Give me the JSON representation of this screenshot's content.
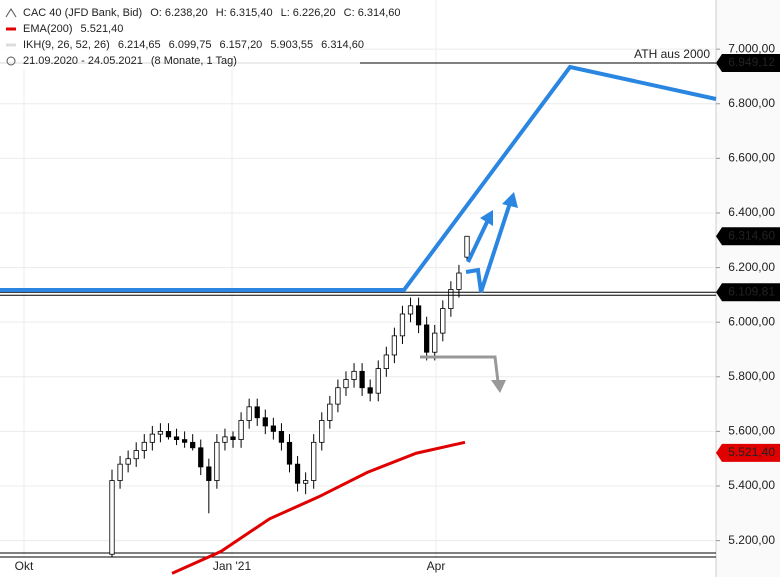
{
  "chart_data": {
    "type": "candlestick",
    "header": [
      [
        "CAC 40 (JFD Bank, Bid)",
        "O: 6.238,20",
        "H: 6.315,40",
        "L: 6.226,20",
        "C: 6.314,60"
      ],
      [
        "EMA(200)",
        "5.521,40"
      ],
      [
        "IKH(9, 26, 52, 26)",
        "6.214,65",
        "6.099,75",
        "6.157,20",
        "5.903,55",
        "6.314,60"
      ],
      [
        "21.09.2020 - 24.05.2021",
        "(8 Monate, 1 Tag)"
      ]
    ],
    "annotation": "ATH aus 2000",
    "xticks": [
      "Okt",
      "Jan '21",
      "Apr"
    ],
    "ylim": [
      5140,
      7180
    ],
    "yticks": [
      {
        "value": 5200,
        "label": "5.200,00"
      },
      {
        "value": 5400,
        "label": "5.400,00"
      },
      {
        "value": 5600,
        "label": "5.600,00"
      },
      {
        "value": 5800,
        "label": "5.800,00"
      },
      {
        "value": 6000,
        "label": "6.000,00"
      },
      {
        "value": 6200,
        "label": "6.200,00"
      },
      {
        "value": 6400,
        "label": "6.400,00"
      },
      {
        "value": 6600,
        "label": "6.600,00"
      },
      {
        "value": 6800,
        "label": "6.800,00"
      },
      {
        "value": 7000,
        "label": "7.000,00"
      }
    ],
    "grid": true,
    "open": [
      5150,
      5420,
      5480,
      5500,
      5530,
      5560,
      5590,
      5600,
      5580,
      5570,
      5560,
      5540,
      5470,
      5420,
      5560,
      5580,
      5570,
      5640,
      5690,
      5650,
      5620,
      5600,
      5560,
      5480,
      5410,
      5420,
      5560,
      5640,
      5700,
      5760,
      5790,
      5820,
      5760,
      5740,
      5830,
      5880,
      5950,
      6030,
      6060,
      5990,
      5890,
      5960,
      6050,
      6120,
      6238.2
    ],
    "high": [
      5460,
      5510,
      5530,
      5560,
      5590,
      5620,
      5630,
      5630,
      5610,
      5600,
      5590,
      5570,
      5500,
      5590,
      5610,
      5600,
      5670,
      5720,
      5720,
      5680,
      5650,
      5630,
      5590,
      5510,
      5450,
      5590,
      5670,
      5730,
      5790,
      5820,
      5850,
      5850,
      5790,
      5860,
      5910,
      5980,
      6060,
      6090,
      6090,
      6020,
      5990,
      6080,
      6150,
      6210,
      6315.4
    ],
    "low": [
      5140,
      5390,
      5450,
      5470,
      5500,
      5530,
      5560,
      5570,
      5550,
      5540,
      5530,
      5440,
      5300,
      5390,
      5530,
      5540,
      5540,
      5610,
      5620,
      5590,
      5570,
      5530,
      5450,
      5380,
      5370,
      5390,
      5530,
      5610,
      5670,
      5730,
      5760,
      5730,
      5710,
      5710,
      5800,
      5850,
      5920,
      6000,
      5960,
      5860,
      5860,
      5930,
      6020,
      6090,
      6226.2
    ],
    "close": [
      5420,
      5480,
      5500,
      5530,
      5560,
      5590,
      5600,
      5580,
      5570,
      5560,
      5540,
      5470,
      5420,
      5560,
      5580,
      5570,
      5640,
      5690,
      5650,
      5620,
      5600,
      5560,
      5480,
      5410,
      5420,
      5560,
      5640,
      5700,
      5760,
      5790,
      5820,
      5760,
      5740,
      5830,
      5880,
      5950,
      6030,
      6060,
      5990,
      5890,
      5960,
      6050,
      6120,
      6180,
      6314.6
    ],
    "ema": {
      "name": "EMA(200)",
      "color": "#e00000",
      "values": [
        5080,
        5160,
        5280,
        5360,
        5450,
        5520,
        5560
      ]
    },
    "levels": [
      {
        "label": "6.949,12",
        "value": 6949.12,
        "color": "#000000"
      },
      {
        "label": "6.314,60",
        "value": 6314.6,
        "color": "#000000"
      },
      {
        "label": "6.109,81",
        "value": 6109.81,
        "color": "#000000"
      },
      {
        "label": "5.521,40",
        "value": 5521.4,
        "color": "#e00000"
      }
    ]
  }
}
